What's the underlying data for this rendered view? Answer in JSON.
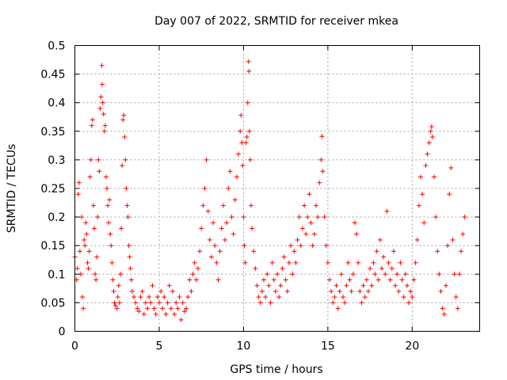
{
  "chart_data": {
    "type": "scatter",
    "title": "Day 007 of 2022, SRMTID for receiver mkea",
    "xlabel": "GPS time / hours",
    "ylabel": "SRMTID / TECUs",
    "xlim": [
      0,
      24
    ],
    "ylim": [
      0,
      0.5
    ],
    "xticks": [
      0,
      5,
      10,
      15,
      20
    ],
    "xtick_labels": [
      "0",
      "5",
      "10",
      "15",
      "20"
    ],
    "yticks": [
      0,
      0.05,
      0.1,
      0.15,
      0.2,
      0.25,
      0.3,
      0.35,
      0.4,
      0.45,
      0.5
    ],
    "ytick_labels": [
      "0",
      "0.05",
      "0.1",
      "0.15",
      "0.2",
      "0.25",
      "0.3",
      "0.35",
      "0.4",
      "0.45",
      "0.5"
    ],
    "grid": true,
    "marker": "plus",
    "color": "#ff0000",
    "series": [
      {
        "name": "SRMTID",
        "points": [
          [
            0.0,
            0.13
          ],
          [
            0.1,
            0.09
          ],
          [
            0.15,
            0.11
          ],
          [
            0.2,
            0.24
          ],
          [
            0.25,
            0.26
          ],
          [
            0.3,
            0.14
          ],
          [
            0.35,
            0.1
          ],
          [
            0.4,
            0.2
          ],
          [
            0.45,
            0.06
          ],
          [
            0.5,
            0.04
          ],
          [
            0.55,
            0.16
          ],
          [
            0.6,
            0.15
          ],
          [
            0.65,
            0.19
          ],
          [
            0.7,
            0.17
          ],
          [
            0.75,
            0.12
          ],
          [
            0.8,
            0.11
          ],
          [
            0.85,
            0.14
          ],
          [
            0.9,
            0.27
          ],
          [
            0.95,
            0.3
          ],
          [
            1.0,
            0.36
          ],
          [
            1.05,
            0.37
          ],
          [
            1.1,
            0.22
          ],
          [
            1.15,
            0.18
          ],
          [
            1.2,
            0.1
          ],
          [
            1.25,
            0.09
          ],
          [
            1.3,
            0.13
          ],
          [
            1.35,
            0.2
          ],
          [
            1.4,
            0.3
          ],
          [
            1.45,
            0.28
          ],
          [
            1.5,
            0.39
          ],
          [
            1.55,
            0.41
          ],
          [
            1.6,
            0.465
          ],
          [
            1.62,
            0.432
          ],
          [
            1.65,
            0.4
          ],
          [
            1.7,
            0.38
          ],
          [
            1.75,
            0.35
          ],
          [
            1.8,
            0.36
          ],
          [
            1.85,
            0.27
          ],
          [
            1.9,
            0.25
          ],
          [
            1.95,
            0.22
          ],
          [
            2.0,
            0.19
          ],
          [
            2.05,
            0.23
          ],
          [
            2.1,
            0.17
          ],
          [
            2.15,
            0.15
          ],
          [
            2.2,
            0.12
          ],
          [
            2.25,
            0.09
          ],
          [
            2.3,
            0.07
          ],
          [
            2.35,
            0.05
          ],
          [
            2.4,
            0.045
          ],
          [
            2.5,
            0.04
          ],
          [
            2.55,
            0.06
          ],
          [
            2.6,
            0.08
          ],
          [
            2.65,
            0.05
          ],
          [
            2.7,
            0.1
          ],
          [
            2.75,
            0.18
          ],
          [
            2.8,
            0.29
          ],
          [
            2.85,
            0.37
          ],
          [
            2.9,
            0.378
          ],
          [
            2.95,
            0.34
          ],
          [
            3.0,
            0.3
          ],
          [
            3.05,
            0.25
          ],
          [
            3.1,
            0.22
          ],
          [
            3.15,
            0.2
          ],
          [
            3.2,
            0.15
          ],
          [
            3.25,
            0.13
          ],
          [
            3.3,
            0.11
          ],
          [
            3.35,
            0.09
          ],
          [
            3.4,
            0.07
          ],
          [
            3.5,
            0.06
          ],
          [
            3.6,
            0.05
          ],
          [
            3.7,
            0.04
          ],
          [
            3.8,
            0.035
          ],
          [
            3.9,
            0.06
          ],
          [
            4.0,
            0.07
          ],
          [
            4.1,
            0.03
          ],
          [
            4.2,
            0.05
          ],
          [
            4.3,
            0.04
          ],
          [
            4.4,
            0.06
          ],
          [
            4.5,
            0.05
          ],
          [
            4.6,
            0.08
          ],
          [
            4.7,
            0.04
          ],
          [
            4.8,
            0.03
          ],
          [
            4.9,
            0.06
          ],
          [
            5.0,
            0.05
          ],
          [
            5.1,
            0.07
          ],
          [
            5.2,
            0.04
          ],
          [
            5.3,
            0.06
          ],
          [
            5.4,
            0.03
          ],
          [
            5.5,
            0.05
          ],
          [
            5.6,
            0.08
          ],
          [
            5.7,
            0.04
          ],
          [
            5.8,
            0.07
          ],
          [
            5.9,
            0.03
          ],
          [
            6.0,
            0.05
          ],
          [
            6.1,
            0.04
          ],
          [
            6.2,
            0.06
          ],
          [
            6.3,
            0.02
          ],
          [
            6.4,
            0.05
          ],
          [
            6.5,
            0.035
          ],
          [
            6.6,
            0.04
          ],
          [
            6.7,
            0.06
          ],
          [
            6.8,
            0.09
          ],
          [
            6.9,
            0.07
          ],
          [
            7.0,
            0.1
          ],
          [
            7.1,
            0.12
          ],
          [
            7.2,
            0.09
          ],
          [
            7.3,
            0.11
          ],
          [
            7.4,
            0.14
          ],
          [
            7.5,
            0.18
          ],
          [
            7.6,
            0.22
          ],
          [
            7.7,
            0.25
          ],
          [
            7.8,
            0.3
          ],
          [
            7.9,
            0.21
          ],
          [
            8.0,
            0.16
          ],
          [
            8.1,
            0.13
          ],
          [
            8.2,
            0.19
          ],
          [
            8.3,
            0.15
          ],
          [
            8.4,
            0.12
          ],
          [
            8.5,
            0.09
          ],
          [
            8.6,
            0.14
          ],
          [
            8.7,
            0.18
          ],
          [
            8.8,
            0.22
          ],
          [
            8.9,
            0.16
          ],
          [
            9.0,
            0.19
          ],
          [
            9.1,
            0.25
          ],
          [
            9.2,
            0.28
          ],
          [
            9.3,
            0.2
          ],
          [
            9.4,
            0.17
          ],
          [
            9.5,
            0.23
          ],
          [
            9.6,
            0.27
          ],
          [
            9.7,
            0.31
          ],
          [
            9.8,
            0.35
          ],
          [
            9.85,
            0.378
          ],
          [
            9.9,
            0.33
          ],
          [
            9.95,
            0.29
          ],
          [
            10.0,
            0.2
          ],
          [
            10.05,
            0.15
          ],
          [
            10.1,
            0.12
          ],
          [
            10.15,
            0.33
          ],
          [
            10.2,
            0.34
          ],
          [
            10.25,
            0.4
          ],
          [
            10.3,
            0.472
          ],
          [
            10.32,
            0.455
          ],
          [
            10.35,
            0.35
          ],
          [
            10.4,
            0.3
          ],
          [
            10.45,
            0.22
          ],
          [
            10.5,
            0.18
          ],
          [
            10.6,
            0.14
          ],
          [
            10.7,
            0.11
          ],
          [
            10.8,
            0.08
          ],
          [
            10.9,
            0.06
          ],
          [
            11.0,
            0.05
          ],
          [
            11.1,
            0.07
          ],
          [
            11.2,
            0.09
          ],
          [
            11.3,
            0.06
          ],
          [
            11.4,
            0.1
          ],
          [
            11.5,
            0.08
          ],
          [
            11.6,
            0.05
          ],
          [
            11.7,
            0.12
          ],
          [
            11.8,
            0.09
          ],
          [
            11.9,
            0.07
          ],
          [
            12.0,
            0.1
          ],
          [
            12.1,
            0.06
          ],
          [
            12.2,
            0.08
          ],
          [
            12.3,
            0.11
          ],
          [
            12.4,
            0.13
          ],
          [
            12.5,
            0.09
          ],
          [
            12.6,
            0.07
          ],
          [
            12.7,
            0.12
          ],
          [
            12.8,
            0.15
          ],
          [
            12.9,
            0.1
          ],
          [
            13.0,
            0.14
          ],
          [
            13.1,
            0.12
          ],
          [
            13.2,
            0.16
          ],
          [
            13.3,
            0.2
          ],
          [
            13.4,
            0.15
          ],
          [
            13.5,
            0.18
          ],
          [
            13.6,
            0.22
          ],
          [
            13.7,
            0.17
          ],
          [
            13.8,
            0.2
          ],
          [
            13.9,
            0.24
          ],
          [
            14.0,
            0.19
          ],
          [
            14.1,
            0.15
          ],
          [
            14.2,
            0.17
          ],
          [
            14.3,
            0.22
          ],
          [
            14.4,
            0.2
          ],
          [
            14.5,
            0.26
          ],
          [
            14.6,
            0.3
          ],
          [
            14.65,
            0.341
          ],
          [
            14.7,
            0.28
          ],
          [
            14.8,
            0.2
          ],
          [
            14.9,
            0.15
          ],
          [
            15.0,
            0.12
          ],
          [
            15.1,
            0.09
          ],
          [
            15.2,
            0.07
          ],
          [
            15.3,
            0.05
          ],
          [
            15.4,
            0.06
          ],
          [
            15.5,
            0.08
          ],
          [
            15.6,
            0.04
          ],
          [
            15.7,
            0.07
          ],
          [
            15.8,
            0.1
          ],
          [
            15.9,
            0.06
          ],
          [
            16.0,
            0.05
          ],
          [
            16.1,
            0.08
          ],
          [
            16.2,
            0.12
          ],
          [
            16.3,
            0.09
          ],
          [
            16.4,
            0.07
          ],
          [
            16.5,
            0.1
          ],
          [
            16.6,
            0.19
          ],
          [
            16.7,
            0.17
          ],
          [
            16.8,
            0.12
          ],
          [
            16.9,
            0.07
          ],
          [
            17.0,
            0.05
          ],
          [
            17.1,
            0.08
          ],
          [
            17.2,
            0.06
          ],
          [
            17.3,
            0.09
          ],
          [
            17.4,
            0.07
          ],
          [
            17.5,
            0.11
          ],
          [
            17.6,
            0.08
          ],
          [
            17.7,
            0.12
          ],
          [
            17.8,
            0.1
          ],
          [
            17.9,
            0.14
          ],
          [
            18.0,
            0.09
          ],
          [
            18.1,
            0.16
          ],
          [
            18.2,
            0.11
          ],
          [
            18.3,
            0.13
          ],
          [
            18.4,
            0.1
          ],
          [
            18.5,
            0.21
          ],
          [
            18.6,
            0.12
          ],
          [
            18.7,
            0.09
          ],
          [
            18.8,
            0.11
          ],
          [
            18.9,
            0.14
          ],
          [
            19.0,
            0.08
          ],
          [
            19.1,
            0.1
          ],
          [
            19.2,
            0.07
          ],
          [
            19.3,
            0.12
          ],
          [
            19.4,
            0.09
          ],
          [
            19.5,
            0.06
          ],
          [
            19.6,
            0.1
          ],
          [
            19.7,
            0.08
          ],
          [
            19.8,
            0.05
          ],
          [
            19.9,
            0.07
          ],
          [
            20.0,
            0.06
          ],
          [
            20.1,
            0.09
          ],
          [
            20.2,
            0.12
          ],
          [
            20.3,
            0.16
          ],
          [
            20.4,
            0.22
          ],
          [
            20.5,
            0.27
          ],
          [
            20.6,
            0.24
          ],
          [
            20.7,
            0.19
          ],
          [
            20.8,
            0.29
          ],
          [
            20.9,
            0.31
          ],
          [
            21.0,
            0.33
          ],
          [
            21.1,
            0.35
          ],
          [
            21.15,
            0.358
          ],
          [
            21.2,
            0.34
          ],
          [
            21.3,
            0.27
          ],
          [
            21.4,
            0.2
          ],
          [
            21.5,
            0.14
          ],
          [
            21.6,
            0.1
          ],
          [
            21.7,
            0.07
          ],
          [
            21.8,
            0.04
          ],
          [
            21.9,
            0.03
          ],
          [
            22.0,
            0.08
          ],
          [
            22.1,
            0.15
          ],
          [
            22.2,
            0.24
          ],
          [
            22.3,
            0.286
          ],
          [
            22.4,
            0.16
          ],
          [
            22.5,
            0.1
          ],
          [
            22.6,
            0.06
          ],
          [
            22.7,
            0.04
          ],
          [
            22.8,
            0.1
          ],
          [
            22.9,
            0.14
          ],
          [
            23.0,
            0.17
          ],
          [
            23.1,
            0.2
          ]
        ]
      }
    ]
  }
}
